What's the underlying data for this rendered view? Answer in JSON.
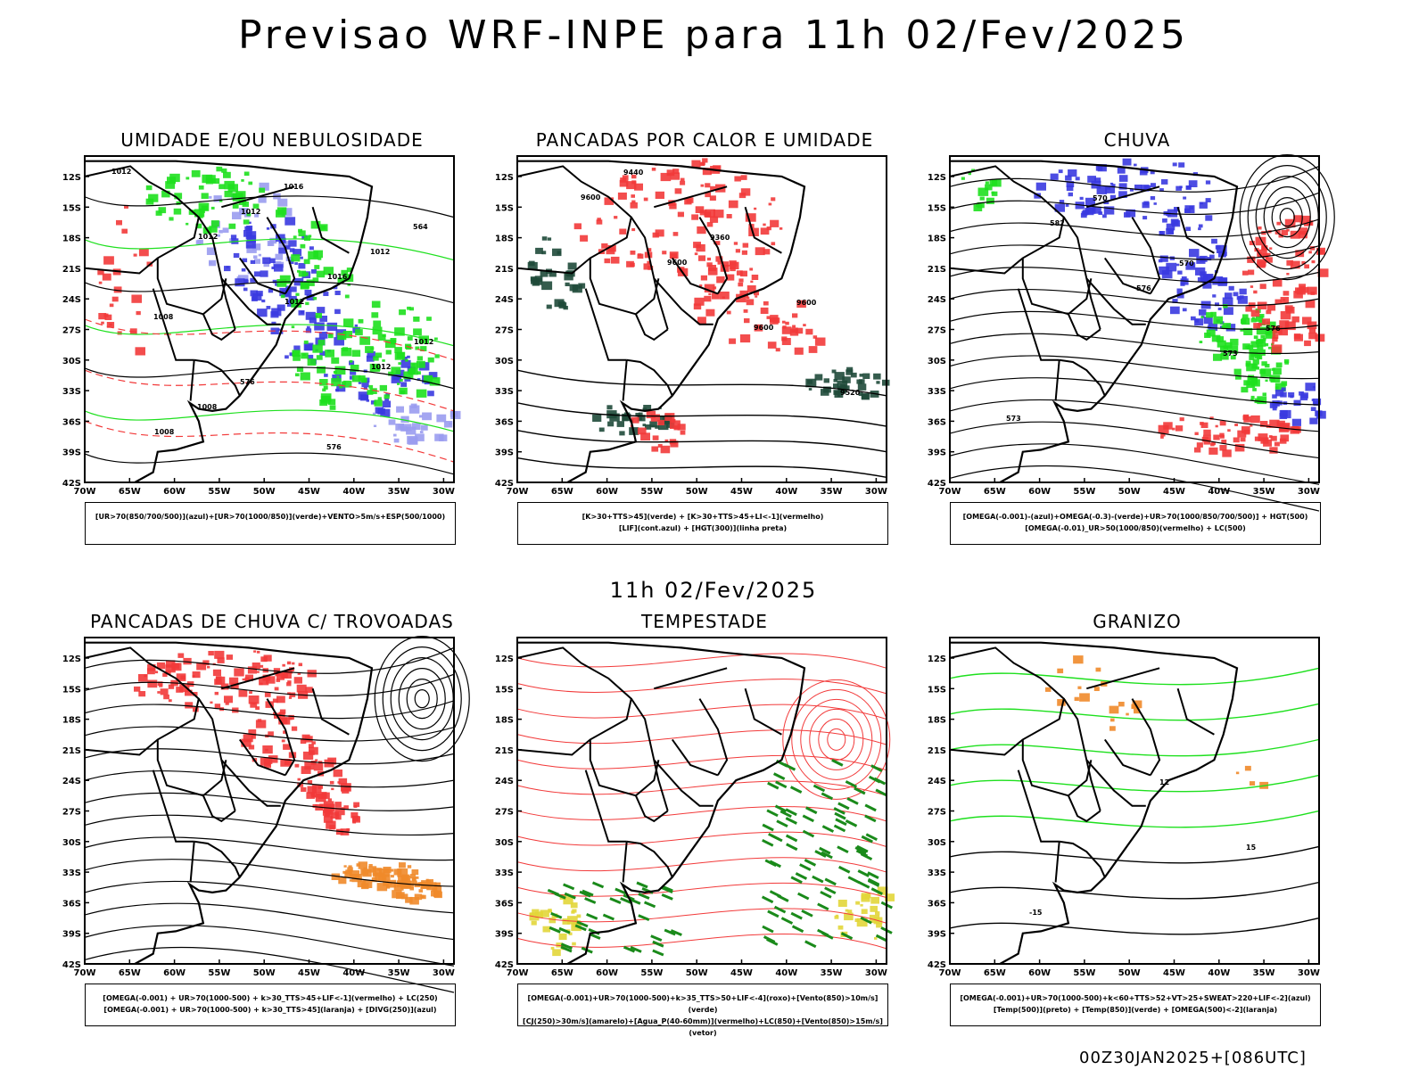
{
  "header": {
    "title": "Previsao WRF-INPE  para 11h 02/Fev/2025",
    "mid_title": "11h 02/Fev/2025",
    "footer_stamp": "00Z30JAN2025+[086UTC]"
  },
  "axes": {
    "lat_ticks": [
      "12S",
      "15S",
      "18S",
      "21S",
      "24S",
      "27S",
      "30S",
      "33S",
      "36S",
      "39S",
      "42S"
    ],
    "lon_ticks": [
      "70W",
      "65W",
      "60W",
      "55W",
      "50W",
      "45W",
      "40W",
      "35W",
      "30W"
    ]
  },
  "colors": {
    "blue": "#3a3ae0",
    "lightblue": "#9a9cf0",
    "green": "#1ee01e",
    "red": "#f23a3a",
    "darkgreen": "#1f4a3a",
    "orange": "#f08a2a",
    "yellow": "#e2d63a",
    "black": "#000000"
  },
  "panels": [
    {
      "title": "UMIDADE E/OU NEBULOSIDADE",
      "legend": [
        "[UR>70(850/700/500)](azul)+[UR>70(1000/850)](verde)+VENTO>5m/s+ESP(500/1000)"
      ],
      "contour_labels": [
        "1012",
        "1012",
        "1012",
        "1012",
        "1008",
        "1012",
        "1016",
        "1012",
        "1008",
        "1016",
        "1012",
        "1008",
        "576",
        "576",
        "564"
      ]
    },
    {
      "title": "PANCADAS POR CALOR E UMIDADE",
      "legend": [
        "[K>30+TTS>45](verde) + [K>30+TTS>45+LI<-1](vermelho)",
        "[LIF](cont.azul) + [HGT(300)](linha preta)"
      ],
      "contour_labels": [
        "9600",
        "9600",
        "9600",
        "9520",
        "9440",
        "9360",
        "9600"
      ]
    },
    {
      "title": "CHUVA",
      "legend": [
        "[OMEGA(-0.001)-(azul)+OMEGA(-0.3)-(verde)+UR>70(1000/850/700/500)] + HGT(500)",
        "[OMEGA(-0.01)_UR>50(1000/850)(vermelho) + LC(500)"
      ],
      "contour_labels": [
        "582",
        "576",
        "573",
        "573",
        "570",
        "570",
        "576"
      ]
    },
    {
      "title": "PANCADAS DE CHUVA C/ TROVOADAS",
      "legend": [
        "[OMEGA(-0.001) + UR>70(1000-500) + k>30_TTS>45+LIF<-1](vermelho) + LC(250)",
        "[OMEGA(-0.001) + UR>70(1000-500) + k>30_TTS>45](laranja) + [DIVG(250)](azul)"
      ],
      "contour_labels": []
    },
    {
      "title": "TEMPESTADE",
      "legend": [
        "[OMEGA(-0.001)+UR>70(1000-500)+k>35_TTS>50+LIF<-4](roxo)+[Vento(850)>10m/s](verde)",
        "[CJ(250)>30m/s](amarelo)+[Agua_P(40-60mm)](vermelho)+LC(850)+[Vento(850)>15m/s](vetor)"
      ],
      "contour_labels": []
    },
    {
      "title": "GRANIZO",
      "legend": [
        "[OMEGA(-0.001)+UR>70(1000-500)+k<60+TTS>52+VT>25+SWEAT>220+LIF<-2](azul)",
        "[Temp(500)](preto) + [Temp(850)](verde) + [OMEGA(500)<-2](laranja)"
      ],
      "contour_labels": [
        "12",
        "15",
        "-15"
      ]
    }
  ],
  "chart_data": [
    {
      "type": "heatmap",
      "title": "UMIDADE E/OU NEBULOSIDADE",
      "xlabel": "",
      "ylabel": "",
      "xlim": [
        "70W",
        "30W"
      ],
      "ylim": [
        "42S",
        "10S"
      ]
    },
    {
      "type": "heatmap",
      "title": "PANCADAS POR CALOR E UMIDADE",
      "xlabel": "",
      "ylabel": "",
      "xlim": [
        "70W",
        "30W"
      ],
      "ylim": [
        "42S",
        "10S"
      ]
    },
    {
      "type": "heatmap",
      "title": "CHUVA",
      "xlabel": "",
      "ylabel": "",
      "xlim": [
        "70W",
        "30W"
      ],
      "ylim": [
        "42S",
        "10S"
      ]
    },
    {
      "type": "heatmap",
      "title": "PANCADAS DE CHUVA C/ TROVOADAS",
      "xlabel": "",
      "ylabel": "",
      "xlim": [
        "70W",
        "30W"
      ],
      "ylim": [
        "42S",
        "10S"
      ]
    },
    {
      "type": "heatmap",
      "title": "TEMPESTADE",
      "xlabel": "",
      "ylabel": "",
      "xlim": [
        "70W",
        "30W"
      ],
      "ylim": [
        "42S",
        "10S"
      ]
    },
    {
      "type": "heatmap",
      "title": "GRANIZO",
      "xlabel": "",
      "ylabel": "",
      "xlim": [
        "70W",
        "30W"
      ],
      "ylim": [
        "42S",
        "10S"
      ]
    }
  ]
}
